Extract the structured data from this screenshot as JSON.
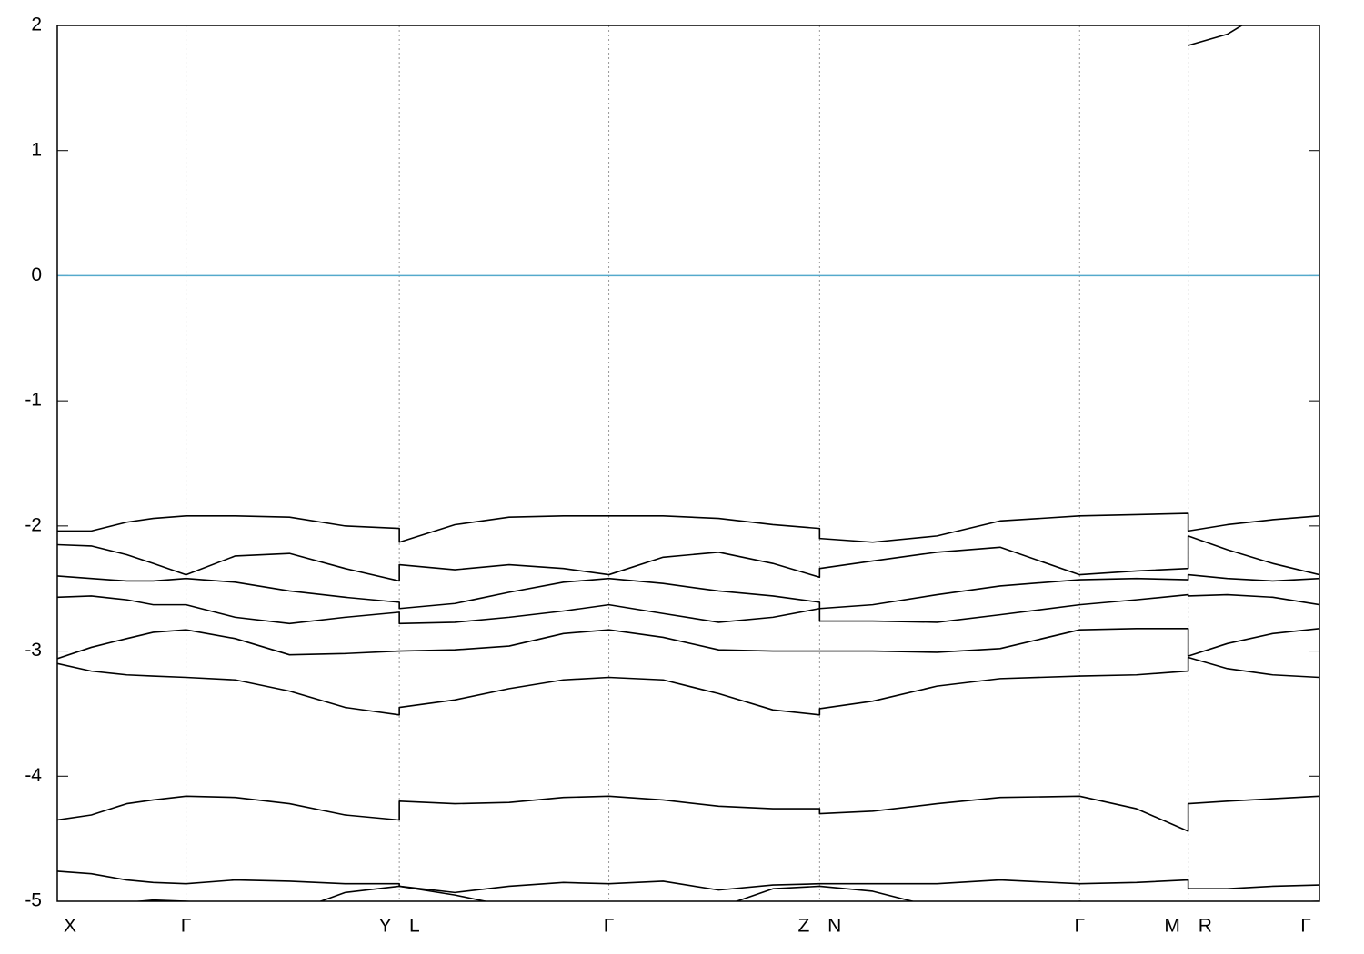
{
  "chart_data": {
    "type": "line",
    "x": [
      0,
      0.027,
      0.055,
      0.076,
      0.102,
      0.141,
      0.184,
      0.228,
      0.271,
      0.271,
      0.315,
      0.358,
      0.401,
      0.437,
      0.48,
      0.524,
      0.567,
      0.604,
      0.604,
      0.646,
      0.697,
      0.747,
      0.81,
      0.855,
      0.896,
      0.896,
      0.927,
      0.963,
      1
    ],
    "xlim": [
      0,
      1
    ],
    "xticks": [
      {
        "value": 0,
        "label": "X"
      },
      {
        "value": 0.102,
        "label": "Γ"
      },
      {
        "value": 0.271,
        "label": "Y L"
      },
      {
        "value": 0.437,
        "label": "Γ"
      },
      {
        "value": 0.604,
        "label": "Z N"
      },
      {
        "value": 0.81,
        "label": "Γ"
      },
      {
        "value": 0.896,
        "label": "M R"
      },
      {
        "value": 1,
        "label": "Γ"
      }
    ],
    "ylim": [
      -5,
      2
    ],
    "yticks": [
      -5,
      -4,
      -3,
      -2,
      -1,
      0,
      1,
      2
    ],
    "grid": true,
    "fermi_level": 0,
    "fermi_color": "#55aacc",
    "series": [
      {
        "color": "#000000",
        "values": [
          null,
          null,
          null,
          null,
          null,
          null,
          null,
          null,
          null,
          null,
          null,
          null,
          null,
          null,
          null,
          null,
          null,
          null,
          null,
          null,
          null,
          null,
          null,
          null,
          null,
          1.84,
          1.93,
          2.15,
          2.4
        ]
      },
      {
        "color": "#000000",
        "values": [
          -2.04,
          -2.04,
          -1.97,
          -1.94,
          -1.92,
          -1.92,
          -1.93,
          -2.0,
          -2.02,
          -2.13,
          -1.99,
          -1.93,
          -1.92,
          -1.92,
          -1.92,
          -1.94,
          -1.99,
          -2.02,
          -2.1,
          -2.13,
          -2.08,
          -1.96,
          -1.92,
          -1.91,
          -1.9,
          -2.04,
          -1.99,
          -1.95,
          -1.92
        ]
      },
      {
        "color": "#000000",
        "values": [
          -2.15,
          -2.16,
          -2.23,
          -2.3,
          -2.39,
          -2.24,
          -2.22,
          -2.34,
          -2.44,
          -2.31,
          -2.35,
          -2.31,
          -2.34,
          -2.39,
          -2.25,
          -2.21,
          -2.3,
          -2.41,
          -2.34,
          -2.28,
          -2.21,
          -2.17,
          -2.39,
          -2.36,
          -2.34,
          -2.08,
          -2.19,
          -2.3,
          -2.39
        ]
      },
      {
        "color": "#000000",
        "values": [
          -2.4,
          -2.42,
          -2.44,
          -2.44,
          -2.42,
          -2.45,
          -2.52,
          -2.57,
          -2.61,
          -2.66,
          -2.62,
          -2.53,
          -2.45,
          -2.42,
          -2.46,
          -2.52,
          -2.56,
          -2.61,
          -2.66,
          -2.63,
          -2.55,
          -2.48,
          -2.43,
          -2.42,
          -2.43,
          -2.39,
          -2.42,
          -2.44,
          -2.42
        ]
      },
      {
        "color": "#000000",
        "values": [
          -2.57,
          -2.56,
          -2.59,
          -2.63,
          -2.63,
          -2.73,
          -2.78,
          -2.73,
          -2.69,
          -2.78,
          -2.77,
          -2.73,
          -2.68,
          -2.63,
          -2.7,
          -2.77,
          -2.73,
          -2.66,
          -2.76,
          -2.76,
          -2.77,
          -2.71,
          -2.63,
          -2.59,
          -2.55,
          -2.56,
          -2.55,
          -2.57,
          -2.63
        ]
      },
      {
        "color": "#000000",
        "values": [
          -3.06,
          -2.97,
          -2.9,
          -2.85,
          -2.83,
          -2.9,
          -3.03,
          -3.02,
          -3.0,
          -3.0,
          -2.99,
          -2.96,
          -2.86,
          -2.83,
          -2.89,
          -2.99,
          -3.0,
          -3.0,
          -3.0,
          -3.0,
          -3.01,
          -2.98,
          -2.83,
          -2.82,
          -2.82,
          -3.04,
          -2.94,
          -2.86,
          -2.82
        ]
      },
      {
        "color": "#000000",
        "values": [
          -3.1,
          -3.16,
          -3.19,
          -3.2,
          -3.21,
          -3.23,
          -3.32,
          -3.45,
          -3.51,
          -3.45,
          -3.39,
          -3.3,
          -3.23,
          -3.21,
          -3.23,
          -3.34,
          -3.47,
          -3.51,
          -3.46,
          -3.4,
          -3.28,
          -3.22,
          -3.2,
          -3.19,
          -3.16,
          -3.05,
          -3.14,
          -3.19,
          -3.21
        ]
      },
      {
        "color": "#000000",
        "values": [
          -4.35,
          -4.31,
          -4.22,
          -4.19,
          -4.16,
          -4.17,
          -4.22,
          -4.31,
          -4.35,
          -4.2,
          -4.22,
          -4.21,
          -4.17,
          -4.16,
          -4.19,
          -4.24,
          -4.26,
          -4.26,
          -4.3,
          -4.28,
          -4.22,
          -4.17,
          -4.16,
          -4.26,
          -4.44,
          -4.22,
          -4.2,
          -4.18,
          -4.16
        ]
      },
      {
        "color": "#000000",
        "values": [
          -4.76,
          -4.78,
          -4.83,
          -4.85,
          -4.86,
          -4.83,
          -4.84,
          -4.86,
          -4.86,
          -4.88,
          -4.93,
          -4.88,
          -4.85,
          -4.86,
          -4.84,
          -4.91,
          -4.87,
          -4.86,
          -4.86,
          -4.86,
          -4.86,
          -4.83,
          -4.86,
          -4.85,
          -4.83,
          -4.9,
          -4.9,
          -4.88,
          -4.87
        ]
      },
      {
        "color": "#000000",
        "values": [
          -5.02,
          -5.01,
          -5.01,
          -4.99,
          -5.0,
          -5.03,
          -5.09,
          -4.93,
          -4.88,
          -4.88,
          -4.95,
          -5.04,
          -5.01,
          -5.01,
          -5.04,
          -5.05,
          -4.9,
          -4.88,
          -4.88,
          -4.92,
          -5.05,
          -5.12,
          -5.0,
          -5.05,
          -5.09,
          -5.04,
          -5.02,
          -5.01,
          -5.0
        ]
      }
    ]
  }
}
